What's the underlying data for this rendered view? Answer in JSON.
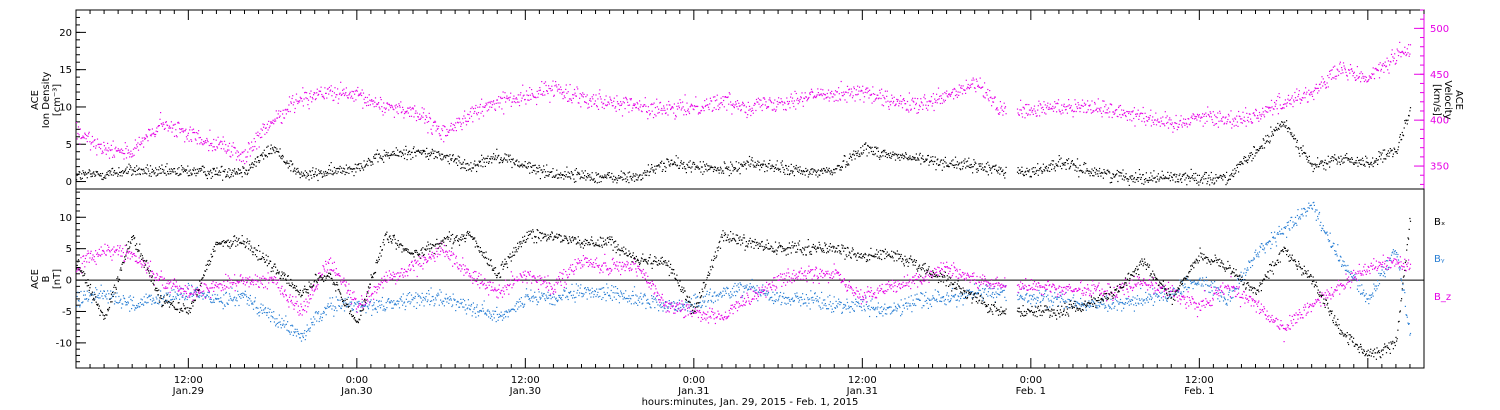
{
  "chart_data": [
    {
      "type": "scatter",
      "panel": "top",
      "left_axis_label": [
        "ACE",
        "Ion Density",
        "[cm⁻³]"
      ],
      "right_axis_label": [
        "ACE",
        "Velocity",
        "[km/s]"
      ],
      "ylim_left": [
        -1,
        23
      ],
      "yticks_left": [
        0,
        5,
        10,
        15,
        20
      ],
      "ylim_right": [
        325,
        520
      ],
      "yticks_right": [
        350,
        400,
        450,
        500
      ],
      "xlim_hours": [
        4,
        100
      ],
      "series": [
        {
          "name": "Ion Density",
          "axis": "left",
          "color": "#000000",
          "x": [
            4,
            6,
            8,
            10,
            12,
            14,
            16,
            18,
            20,
            22,
            24,
            26,
            28,
            30,
            32,
            34,
            36,
            38,
            40,
            42,
            44,
            46,
            48,
            50,
            52,
            54,
            56,
            58,
            60,
            62,
            64,
            66,
            68,
            70,
            72,
            74,
            76,
            78,
            80,
            82,
            84,
            86,
            88,
            90,
            92,
            94,
            96,
            98,
            99
          ],
          "y": [
            0.8,
            1.0,
            1.5,
            1.2,
            1.4,
            1.2,
            1.5,
            4.5,
            0.8,
            1.2,
            2.0,
            3.5,
            4.0,
            3.5,
            2.0,
            3.5,
            2.0,
            1.0,
            0.8,
            0.5,
            0.6,
            2.5,
            2.0,
            1.5,
            2.5,
            1.8,
            1.2,
            1.5,
            4.5,
            3.5,
            3.0,
            2.5,
            2.0,
            1.5,
            1.2,
            2.5,
            1.5,
            0.8,
            0.5,
            0.6,
            0.5,
            0.5,
            4.0,
            8.0,
            2.0,
            3.0,
            2.5,
            4.0,
            9.5
          ]
        },
        {
          "name": "Velocity",
          "axis": "right",
          "color": "#e600e6",
          "x": [
            4,
            6,
            8,
            10,
            12,
            14,
            16,
            18,
            20,
            22,
            24,
            26,
            28,
            30,
            32,
            34,
            36,
            38,
            40,
            42,
            44,
            46,
            48,
            50,
            52,
            54,
            56,
            58,
            60,
            62,
            64,
            66,
            68,
            70,
            72,
            74,
            76,
            78,
            80,
            82,
            84,
            86,
            88,
            90,
            92,
            94,
            96,
            98,
            99
          ],
          "y": [
            385,
            370,
            365,
            395,
            385,
            375,
            360,
            400,
            425,
            430,
            425,
            415,
            410,
            385,
            405,
            420,
            425,
            435,
            425,
            420,
            415,
            410,
            415,
            420,
            415,
            420,
            425,
            430,
            430,
            420,
            415,
            425,
            440,
            410,
            410,
            415,
            415,
            410,
            405,
            395,
            405,
            400,
            405,
            420,
            430,
            455,
            445,
            470,
            475
          ]
        }
      ]
    },
    {
      "type": "scatter",
      "panel": "bottom",
      "left_axis_label": [
        "ACE",
        "B",
        "[nT]"
      ],
      "ylim": [
        -14,
        14.5
      ],
      "yticks": [
        -10,
        -5,
        0,
        5,
        10
      ],
      "xlim_hours": [
        4,
        100
      ],
      "series": [
        {
          "name": "Bₓ",
          "color": "#000000",
          "x": [
            4,
            6,
            8,
            10,
            12,
            14,
            16,
            18,
            20,
            22,
            24,
            26,
            28,
            30,
            32,
            34,
            36,
            38,
            40,
            42,
            44,
            46,
            48,
            50,
            52,
            54,
            56,
            58,
            60,
            62,
            64,
            66,
            68,
            70,
            72,
            74,
            76,
            78,
            80,
            82,
            84,
            86,
            88,
            90,
            92,
            94,
            96,
            98,
            99
          ],
          "y": [
            3.0,
            -6.0,
            7.0,
            -3.0,
            -5.0,
            6.0,
            6.0,
            2.0,
            -2.0,
            1.0,
            -7.0,
            7.0,
            4.0,
            6.0,
            7.0,
            1.0,
            7.0,
            7.0,
            6.0,
            6.0,
            3.0,
            3.0,
            -5.0,
            7.0,
            6.0,
            5.0,
            5.0,
            5.0,
            4.0,
            4.0,
            2.0,
            0.0,
            -3.0,
            -5.0,
            -5.0,
            -5.0,
            -4.0,
            -2.0,
            3.0,
            -3.0,
            4.0,
            2.0,
            -2.0,
            5.0,
            0.0,
            -8.0,
            -12.0,
            -10.0,
            10.0
          ]
        },
        {
          "name": "Bᵧ",
          "color": "#2a7fd4",
          "x": [
            4,
            6,
            8,
            10,
            12,
            14,
            16,
            18,
            20,
            22,
            24,
            26,
            28,
            30,
            32,
            34,
            36,
            38,
            40,
            42,
            44,
            46,
            48,
            50,
            52,
            54,
            56,
            58,
            60,
            62,
            64,
            66,
            68,
            70,
            72,
            74,
            76,
            78,
            80,
            82,
            84,
            86,
            88,
            90,
            92,
            94,
            96,
            98,
            99
          ],
          "y": [
            -3.0,
            -2.0,
            -4.0,
            -3.0,
            -2.0,
            -3.0,
            -2.5,
            -6.0,
            -9.0,
            -4.0,
            -4.0,
            -4.0,
            -3.0,
            -3.0,
            -4.0,
            -6.0,
            -3.0,
            -3.0,
            -2.0,
            -2.0,
            -3.0,
            -4.0,
            -4.0,
            -2.0,
            -1.0,
            -3.0,
            -3.0,
            -4.0,
            -4.0,
            -5.0,
            -3.0,
            -3.0,
            -2.0,
            -2.0,
            -3.0,
            -3.0,
            -4.0,
            -4.0,
            -3.0,
            -2.0,
            0.0,
            -3.0,
            4.0,
            8.0,
            12.0,
            3.0,
            -3.0,
            5.0,
            -9.0
          ]
        },
        {
          "name": "B_z",
          "color": "#e600e6",
          "x": [
            4,
            6,
            8,
            10,
            12,
            14,
            16,
            18,
            20,
            22,
            24,
            26,
            28,
            30,
            32,
            34,
            36,
            38,
            40,
            42,
            44,
            46,
            48,
            50,
            52,
            54,
            56,
            58,
            60,
            62,
            64,
            66,
            68,
            70,
            72,
            74,
            76,
            78,
            80,
            82,
            84,
            86,
            88,
            90,
            92,
            94,
            96,
            98,
            99
          ],
          "y": [
            2.0,
            5.0,
            4.0,
            0.0,
            -2.0,
            -1.0,
            0.0,
            0.0,
            -5.0,
            3.0,
            -4.0,
            0.0,
            2.0,
            5.0,
            1.0,
            -2.0,
            1.0,
            -1.0,
            3.0,
            2.0,
            2.0,
            -4.0,
            -5.0,
            -6.0,
            -3.0,
            0.0,
            1.0,
            1.0,
            -3.0,
            -1.0,
            0.0,
            2.0,
            0.0,
            -1.0,
            -1.0,
            -1.5,
            -1.5,
            -2.0,
            0.0,
            -2.0,
            -4.0,
            -1.0,
            -4.0,
            -8.0,
            -4.0,
            -1.0,
            2.0,
            3.0,
            2.0
          ]
        }
      ]
    }
  ],
  "legend": {
    "bx": "Bₓ",
    "by": "Bᵧ",
    "bz": "B_z",
    "bx_color": "#000000",
    "by_color": "#2a7fd4",
    "bz_color": "#e600e6"
  },
  "x_axis": {
    "xlim_hours": [
      4,
      100
    ],
    "tick_labels": [
      {
        "t": 12,
        "time": "12:00",
        "date": "Jan.29"
      },
      {
        "t": 24,
        "time": "0:00",
        "date": "Jan.30"
      },
      {
        "t": 36,
        "time": "12:00",
        "date": "Jan.30"
      },
      {
        "t": 48,
        "time": "0:00",
        "date": "Jan.31"
      },
      {
        "t": 60,
        "time": "12:00",
        "date": "Jan.31"
      },
      {
        "t": 72,
        "time": "0:00",
        "date": "Feb. 1"
      },
      {
        "t": 84,
        "time": "12:00",
        "date": "Feb. 1"
      }
    ],
    "title": "hours:minutes, Jan. 29, 2015 - Feb. 1, 2015"
  }
}
